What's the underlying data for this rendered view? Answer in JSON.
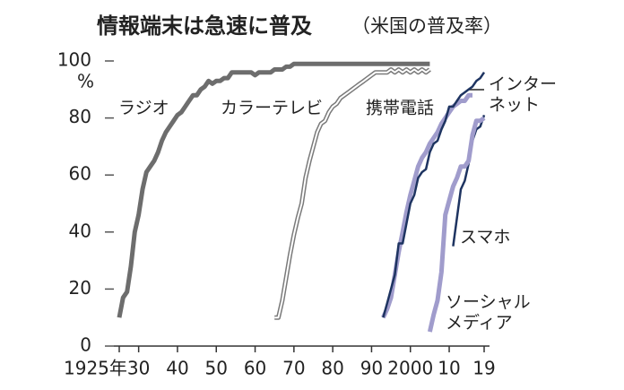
{
  "chart_data": {
    "type": "line",
    "title": "情報端末は急速に普及",
    "subtitle": "（米国の普及率）",
    "y_unit": "%",
    "xlim": [
      1925,
      2019
    ],
    "xticks": [
      {
        "value": 1925,
        "label": "1925年"
      },
      {
        "value": 1930,
        "label": "30"
      },
      {
        "value": 1940,
        "label": "40"
      },
      {
        "value": 1950,
        "label": "50"
      },
      {
        "value": 1960,
        "label": "60"
      },
      {
        "value": 1970,
        "label": "70"
      },
      {
        "value": 1980,
        "label": "80"
      },
      {
        "value": 1990,
        "label": "90"
      },
      2000,
      {
        "value": 2010,
        "label": "10"
      },
      {
        "value": 2019,
        "label": "19"
      }
    ],
    "ylim": [
      0,
      100
    ],
    "yticks": [
      0,
      20,
      40,
      60,
      80,
      100
    ],
    "series": [
      {
        "name": "ラジオ",
        "color": "#6d6d6d",
        "x": [
          1925,
          1926,
          1927,
          1928,
          1929,
          1930,
          1931,
          1932,
          1933,
          1934,
          1935,
          1936,
          1937,
          1938,
          1939,
          1940,
          1941,
          1942,
          1943,
          1944,
          1945,
          1946,
          1947,
          1948,
          1949,
          1950,
          1951,
          1952,
          1953,
          1954,
          1955,
          1956,
          1957,
          1958,
          1959,
          1960,
          1961,
          1962,
          1963,
          1964,
          1965,
          1966,
          1967,
          1968,
          1969,
          1970,
          1980,
          1990,
          2000,
          2005
        ],
        "values": [
          10,
          17,
          19,
          28,
          40,
          46,
          55,
          61,
          63,
          65,
          68,
          72,
          75,
          77,
          79,
          81,
          82,
          84,
          86,
          88,
          88,
          90,
          91,
          93,
          92,
          93,
          93,
          94,
          94,
          96,
          96,
          96,
          96,
          96,
          96,
          95,
          96,
          96,
          96,
          96,
          97,
          97,
          97,
          98,
          98,
          99,
          99,
          99,
          99,
          99
        ]
      },
      {
        "name": "カラーテレビ",
        "color": "#7a7a7a",
        "x": [
          1965,
          1966,
          1967,
          1968,
          1969,
          1970,
          1971,
          1972,
          1973,
          1974,
          1975,
          1976,
          1977,
          1978,
          1979,
          1980,
          1981,
          1982,
          1983,
          1984,
          1985,
          1986,
          1987,
          1988,
          1989,
          1990,
          1991,
          1992,
          1993,
          1994,
          1995,
          1996,
          1997,
          1998,
          1999,
          2000,
          2001,
          2002,
          2003,
          2004,
          2005
        ],
        "values": [
          10,
          10,
          16,
          24,
          32,
          39,
          45,
          50,
          59,
          65,
          70,
          75,
          78,
          79,
          82,
          84,
          85,
          87,
          88,
          89,
          90,
          91,
          92,
          93,
          94,
          95,
          96,
          96,
          96,
          96,
          97,
          96,
          97,
          96,
          97,
          96,
          97,
          96,
          97,
          96,
          97
        ]
      },
      {
        "name": "携帯電話",
        "color": "#a09ccc",
        "x": [
          1993,
          1994,
          1995,
          1996,
          1997,
          1998,
          1999,
          2000,
          2001,
          2002,
          2003,
          2004,
          2005,
          2006,
          2007,
          2008,
          2009,
          2010,
          2011,
          2012,
          2013,
          2014,
          2015,
          2016
        ],
        "values": [
          10,
          13,
          17,
          25,
          33,
          40,
          47,
          53,
          58,
          63,
          66,
          68,
          71,
          73,
          75,
          78,
          80,
          82,
          84,
          85,
          86,
          86,
          88,
          88
        ]
      },
      {
        "name": "インターネット",
        "color": "#1e3461",
        "x": [
          1993,
          1994,
          1995,
          1996,
          1997,
          1998,
          1999,
          2000,
          2001,
          2002,
          2003,
          2004,
          2005,
          2006,
          2007,
          2008,
          2009,
          2010,
          2011,
          2012,
          2013,
          2014,
          2015,
          2016,
          2017,
          2018,
          2019
        ],
        "values": [
          10,
          15,
          20,
          25,
          36,
          36,
          43,
          50,
          53,
          59,
          61,
          62,
          68,
          71,
          72,
          76,
          79,
          84,
          84,
          86,
          88,
          89,
          90,
          91,
          93,
          94,
          96
        ]
      },
      {
        "name": "スマホ",
        "color": "#1e3461",
        "x": [
          2011,
          2012,
          2013,
          2014,
          2015,
          2016,
          2017,
          2018,
          2019
        ],
        "values": [
          35,
          45,
          55,
          58,
          64,
          72,
          76,
          77,
          81
        ]
      },
      {
        "name": "ソーシャルメディア",
        "color": "#a09ccc",
        "x": [
          2005,
          2006,
          2007,
          2008,
          2009,
          2010,
          2011,
          2012,
          2013,
          2014,
          2015,
          2016,
          2017,
          2018,
          2019
        ],
        "values": [
          5,
          11,
          16,
          26,
          46,
          51,
          56,
          59,
          63,
          63,
          65,
          74,
          79,
          79,
          80
        ]
      }
    ]
  }
}
